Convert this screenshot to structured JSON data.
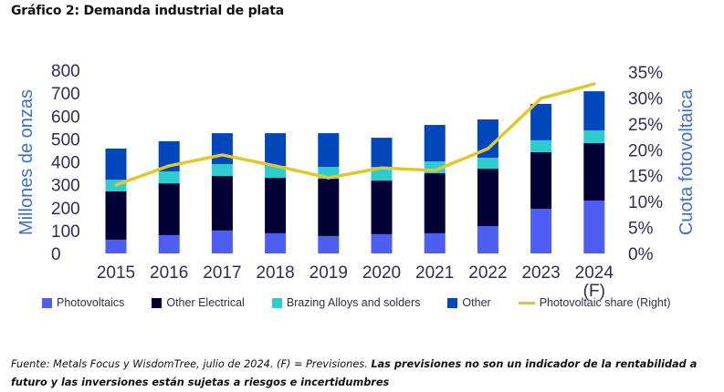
{
  "title": "Gráfico 2: Demanda industrial de plata",
  "chart_data": {
    "type": "bar",
    "stacked": true,
    "categories": [
      "2015",
      "2016",
      "2017",
      "2018",
      "2019",
      "2020",
      "2021",
      "2022",
      "2023",
      "2024\n(F)"
    ],
    "series": [
      {
        "name": "Photovoltaics",
        "color": "#4f5ef2",
        "values": [
          60,
          80,
          100,
          88,
          76,
          84,
          88,
          119,
          195,
          231
        ]
      },
      {
        "name": "Other Electrical",
        "color": "#020035",
        "values": [
          211,
          226,
          238,
          242,
          250,
          234,
          262,
          251,
          247,
          251
        ]
      },
      {
        "name": "Brazing Alloys and solders",
        "color": "#2dcccf",
        "values": [
          51,
          52,
          52,
          52,
          52,
          60,
          52,
          48,
          52,
          55
        ]
      },
      {
        "name": "Other",
        "color": "#0047bb",
        "values": [
          136,
          132,
          135,
          143,
          147,
          127,
          159,
          167,
          159,
          171
        ]
      }
    ],
    "line_series": {
      "name": "Photovoltaic share (Right)",
      "color": "#e0c82b",
      "axis": "right",
      "values": [
        13.2,
        16.9,
        19.0,
        16.9,
        14.6,
        16.5,
        16.0,
        20.2,
        29.9,
        32.7
      ]
    },
    "ylabel": "Millones de onzas",
    "ylim": [
      0,
      800
    ],
    "yticks": [
      "0",
      "100",
      "200",
      "300",
      "400",
      "500",
      "600",
      "700",
      "800"
    ],
    "y2label": "Cuota fotovoltaica",
    "y2lim": [
      0,
      35
    ],
    "y2ticks": [
      "0%",
      "5%",
      "10%",
      "15%",
      "20%",
      "25%",
      "30%",
      "35%"
    ],
    "grid": false,
    "legend_position": "bottom"
  },
  "legend": [
    {
      "label": "Photovoltaics",
      "kind": "box",
      "color": "#4f5ef2"
    },
    {
      "label": "Other Electrical",
      "kind": "box",
      "color": "#020035"
    },
    {
      "label": "Brazing Alloys and solders",
      "kind": "box",
      "color": "#2dcccf"
    },
    {
      "label": "Other",
      "kind": "box",
      "color": "#0047bb"
    },
    {
      "label": "Photovoltaic share (Right)",
      "kind": "line",
      "color": "#e0c82b"
    }
  ],
  "footnote": {
    "italic": "Fuente: Metals Focus y WisdomTree, julio de 2024. (F) = Previsiones. ",
    "bold": "Las previsiones no son un indicador de la rentabilidad a futuro y las inversiones están sujetas a riesgos e incertidumbres"
  }
}
